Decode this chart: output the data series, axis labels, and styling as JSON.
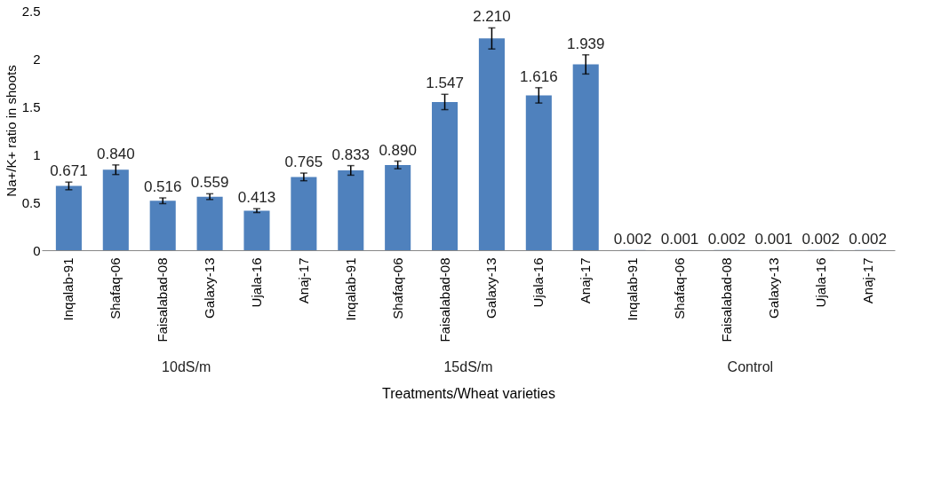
{
  "chart_data": {
    "type": "bar",
    "xlabel": "Treatments/Wheat varieties",
    "ylabel": "Na+/K+ ratio in shoots",
    "categories": [
      "Inqalab-91",
      "Shafaq-06",
      "Faisalabad-08",
      "Galaxy-13",
      "Ujala-16",
      "Anaj-17",
      "Inqalab-91",
      "Shafaq-06",
      "Faisalabad-08",
      "Galaxy-13",
      "Ujala-16",
      "Anaj-17",
      "Inqalab-91",
      "Shafaq-06",
      "Faisalabad-08",
      "Galaxy-13",
      "Ujala-16",
      "Anaj-17"
    ],
    "values": [
      0.671,
      0.84,
      0.516,
      0.559,
      0.413,
      0.765,
      0.833,
      0.89,
      1.547,
      2.21,
      1.616,
      1.939,
      0.002,
      0.001,
      0.002,
      0.001,
      0.002,
      0.002
    ],
    "errors": [
      0.04,
      0.05,
      0.03,
      0.03,
      0.02,
      0.04,
      0.05,
      0.04,
      0.08,
      0.11,
      0.08,
      0.1,
      null,
      null,
      null,
      null,
      null,
      null
    ],
    "value_labels": [
      "0.671",
      "0.840",
      "0.516",
      "0.559",
      "0.413",
      "0.765",
      "0.833",
      "0.890",
      "1.547",
      "2.210",
      "1.616",
      "1.939",
      "0.002",
      "0.001",
      "0.002",
      "0.001",
      "0.002",
      "0.002"
    ],
    "color": "#4f81bd",
    "ylim": [
      0,
      2.5
    ],
    "yticks": [
      0,
      0.5,
      1,
      1.5,
      2,
      2.5
    ],
    "grid": false,
    "annotations": [
      "10dS/m",
      "15dS/m",
      "Control"
    ]
  }
}
